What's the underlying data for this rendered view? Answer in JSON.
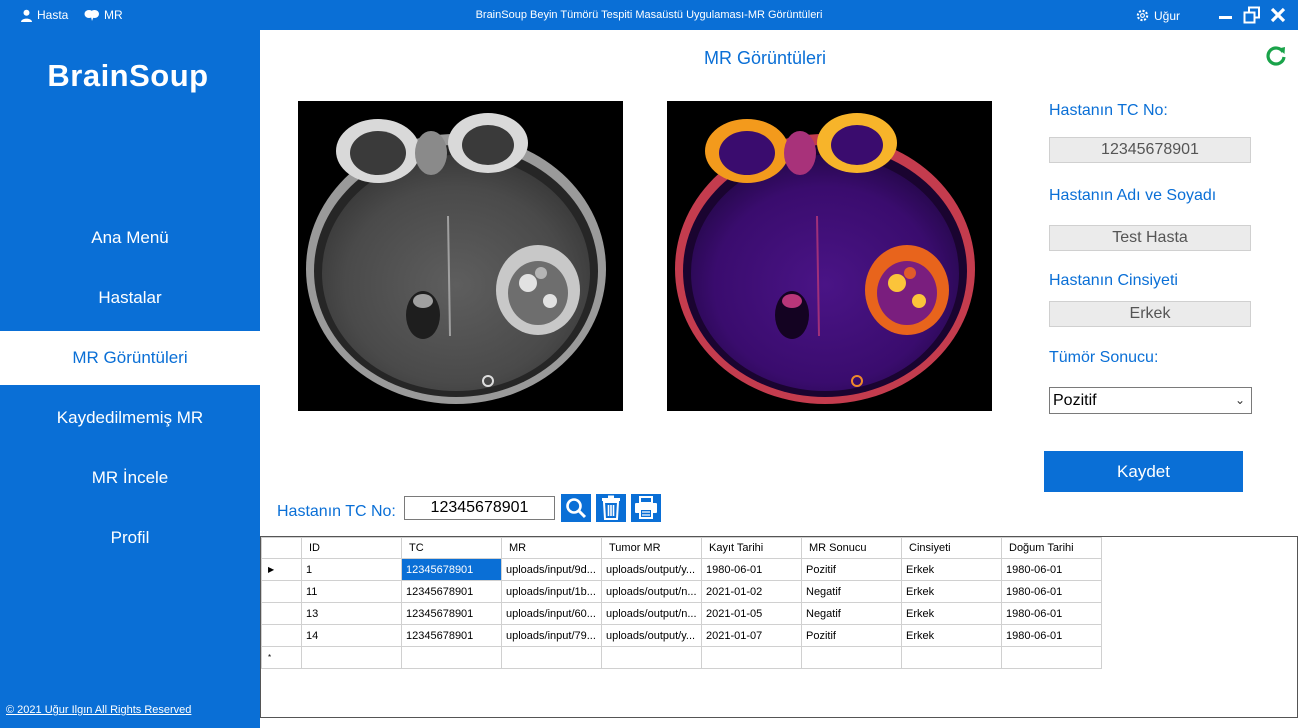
{
  "titlebar": {
    "patient_menu": "Hasta",
    "mr_menu": "MR",
    "window_title": "BrainSoup Beyin Tümörü Tespiti Masaüstü Uygulaması-MR Görüntüleri",
    "user_name": "Uğur"
  },
  "sidebar": {
    "brand": "BrainSoup",
    "items": [
      {
        "label": "Ana Menü"
      },
      {
        "label": "Hastalar"
      },
      {
        "label": "MR Görüntüleri"
      },
      {
        "label": "Kaydedilmemiş MR"
      },
      {
        "label": "MR İncele"
      },
      {
        "label": "Profil"
      }
    ],
    "footer": "© 2021 Uğur Ilgın All Rights Reserved"
  },
  "main": {
    "title": "MR Görüntüleri",
    "tc_label": "Hastanın TC No:",
    "tc_value": "12345678901",
    "name_label": "Hastanın Adı ve Soyadı",
    "name_value": "Test Hasta",
    "gender_label": "Hastanın Cinsiyeti",
    "gender_value": "Erkek",
    "tumor_label": "Tümör Sonucu:",
    "tumor_value": "Pozitif",
    "save_label": "Kaydet",
    "search_label": "Hastanın TC No:",
    "search_value": "12345678901"
  },
  "grid": {
    "columns": [
      "ID",
      "TC",
      "MR",
      "Tumor MR",
      "Kayıt Tarihi",
      "MR Sonucu",
      "Cinsiyeti",
      "Doğum Tarihi"
    ],
    "rows": [
      [
        "1",
        "12345678901",
        "uploads/input/9d...",
        "uploads/output/y...",
        "1980-06-01",
        "Pozitif",
        "Erkek",
        "1980-06-01"
      ],
      [
        "11",
        "12345678901",
        "uploads/input/1b...",
        "uploads/output/n...",
        "2021-01-02",
        "Negatif",
        "Erkek",
        "1980-06-01"
      ],
      [
        "13",
        "12345678901",
        "uploads/input/60...",
        "uploads/output/n...",
        "2021-01-05",
        "Negatif",
        "Erkek",
        "1980-06-01"
      ],
      [
        "14",
        "12345678901",
        "uploads/input/79...",
        "uploads/output/y...",
        "2021-01-07",
        "Pozitif",
        "Erkek",
        "1980-06-01"
      ]
    ],
    "current_row_marker": "▶",
    "new_row_marker": "*"
  },
  "colors": {
    "accent": "#0a6fd6",
    "refresh": "#1aa34a"
  }
}
